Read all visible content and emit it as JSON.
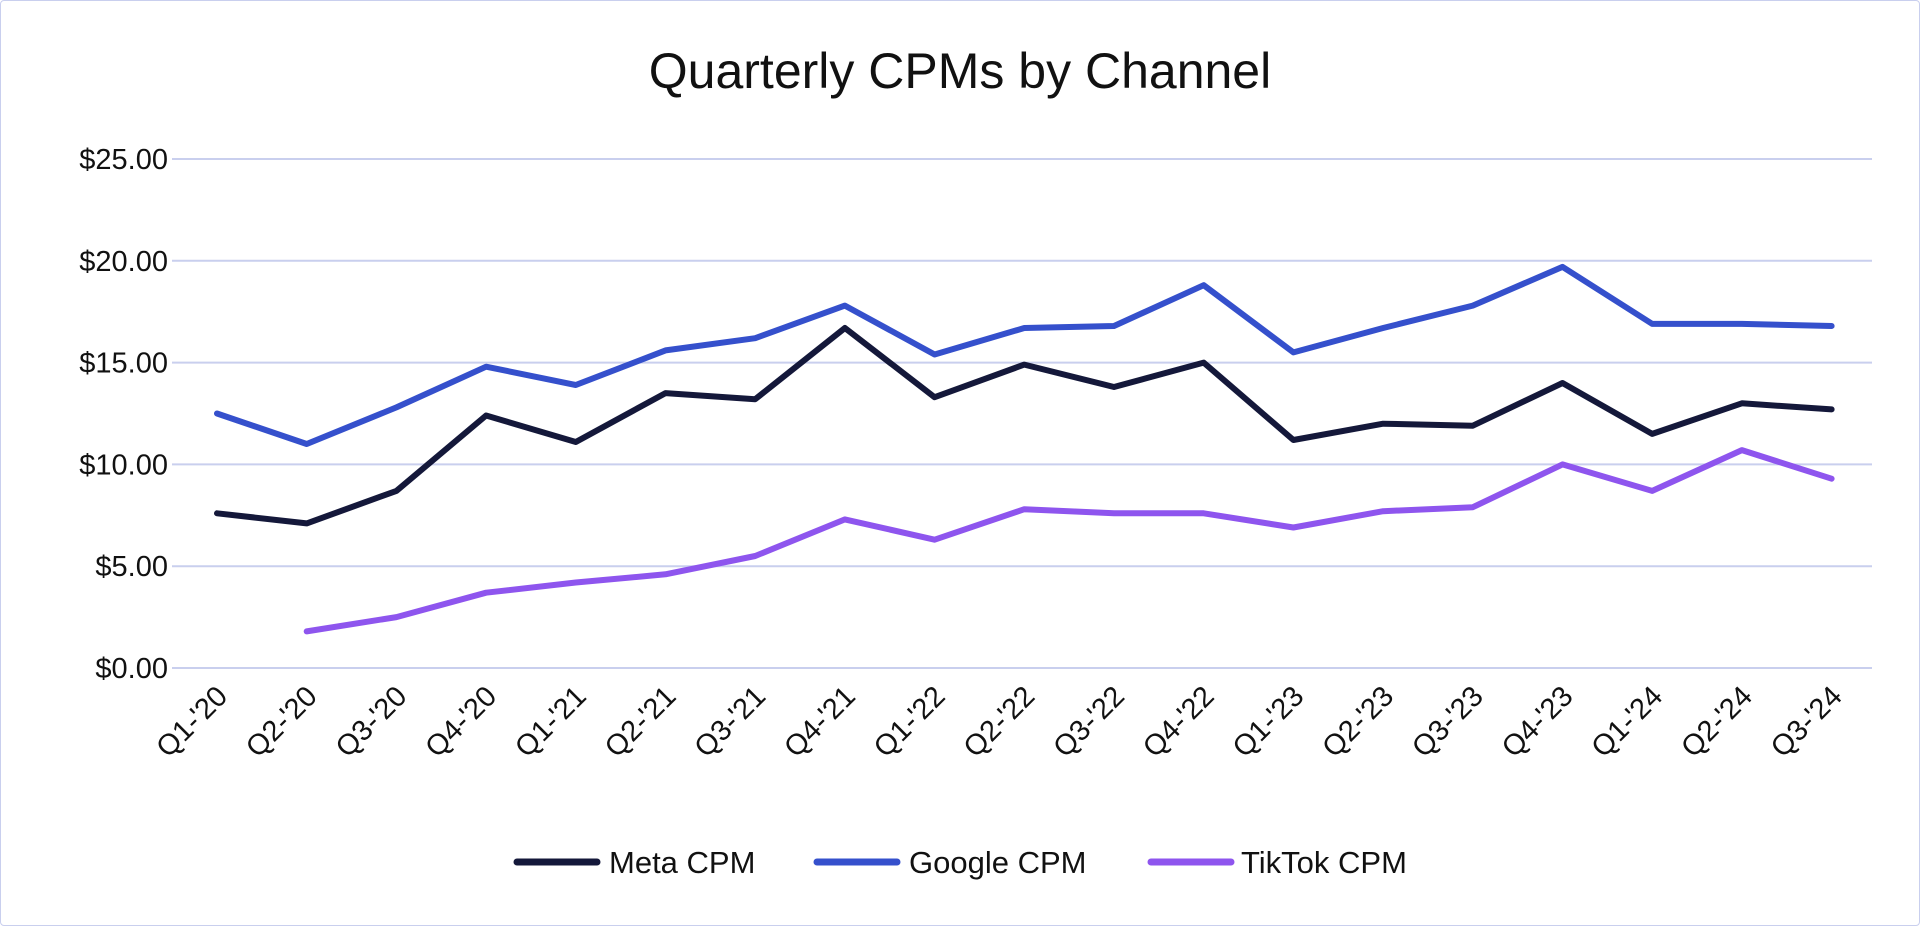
{
  "chart_data": {
    "type": "line",
    "title": "Quarterly CPMs by Channel",
    "xlabel": "",
    "ylabel": "",
    "ylim": [
      0,
      25
    ],
    "yticks": [
      0,
      5,
      10,
      15,
      20,
      25
    ],
    "ytick_labels": [
      "$0.00",
      "$5.00",
      "$10.00",
      "$15.00",
      "$20.00",
      "$25.00"
    ],
    "grid": true,
    "legend_position": "bottom",
    "categories": [
      "Q1-'20",
      "Q2-'20",
      "Q3-'20",
      "Q4-'20",
      "Q1-'21",
      "Q2-'21",
      "Q3-'21",
      "Q4-'21",
      "Q1-'22",
      "Q2-'22",
      "Q3-'22",
      "Q4-'22",
      "Q1-'23",
      "Q2-'23",
      "Q3-'23",
      "Q4-'23",
      "Q1-'24",
      "Q2-'24",
      "Q3-'24"
    ],
    "series": [
      {
        "name": "Meta CPM",
        "color": "#14183a",
        "values": [
          7.6,
          7.1,
          8.7,
          12.4,
          11.1,
          13.5,
          13.2,
          16.7,
          13.3,
          14.9,
          13.8,
          15.0,
          11.2,
          12.0,
          11.9,
          14.0,
          11.5,
          13.0,
          12.7
        ]
      },
      {
        "name": "Google CPM",
        "color": "#3550cc",
        "values": [
          12.5,
          11.0,
          12.8,
          14.8,
          13.9,
          15.6,
          16.2,
          17.8,
          15.4,
          16.7,
          16.8,
          18.8,
          15.5,
          16.7,
          17.8,
          19.7,
          16.9,
          16.9,
          16.8
        ]
      },
      {
        "name": "TikTok CPM",
        "color": "#8e55ee",
        "values": [
          null,
          1.8,
          2.5,
          3.7,
          4.2,
          4.6,
          5.5,
          7.3,
          6.3,
          7.8,
          7.6,
          7.6,
          6.9,
          7.7,
          7.9,
          10.0,
          8.7,
          10.7,
          9.3
        ]
      }
    ]
  }
}
